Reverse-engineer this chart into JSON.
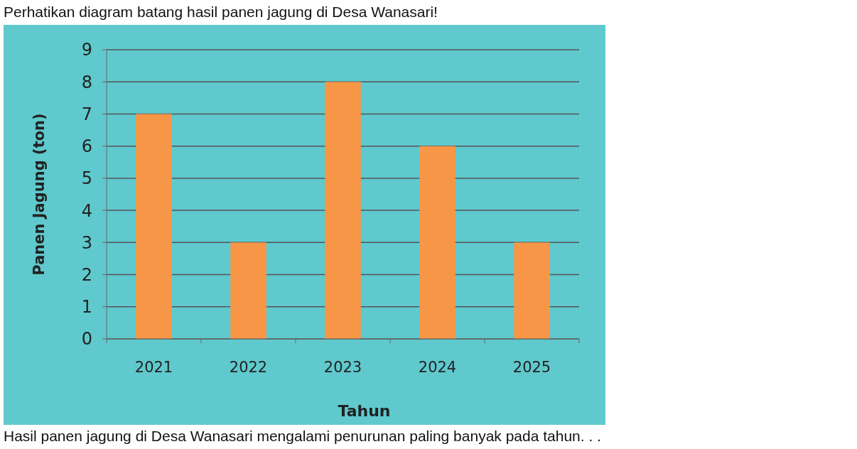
{
  "chart_data": {
    "type": "bar",
    "title": "Perhatikan diagram batang hasil panen jagung di Desa Wanasari!",
    "xlabel": "Tahun",
    "ylabel": "Panen Jagung (ton)",
    "categories": [
      "2021",
      "2022",
      "2023",
      "2024",
      "2025"
    ],
    "values": [
      7,
      3,
      8,
      6,
      3
    ],
    "color": "#f79646",
    "ylim": [
      0,
      9
    ],
    "yticks": [
      0,
      1,
      2,
      3,
      4,
      5,
      6,
      7,
      8,
      9
    ],
    "grid": "y",
    "annotations": [
      "Hasil panen jagung di Desa Wanasari mengalami penurunan paling banyak pada tahun. . ."
    ]
  }
}
